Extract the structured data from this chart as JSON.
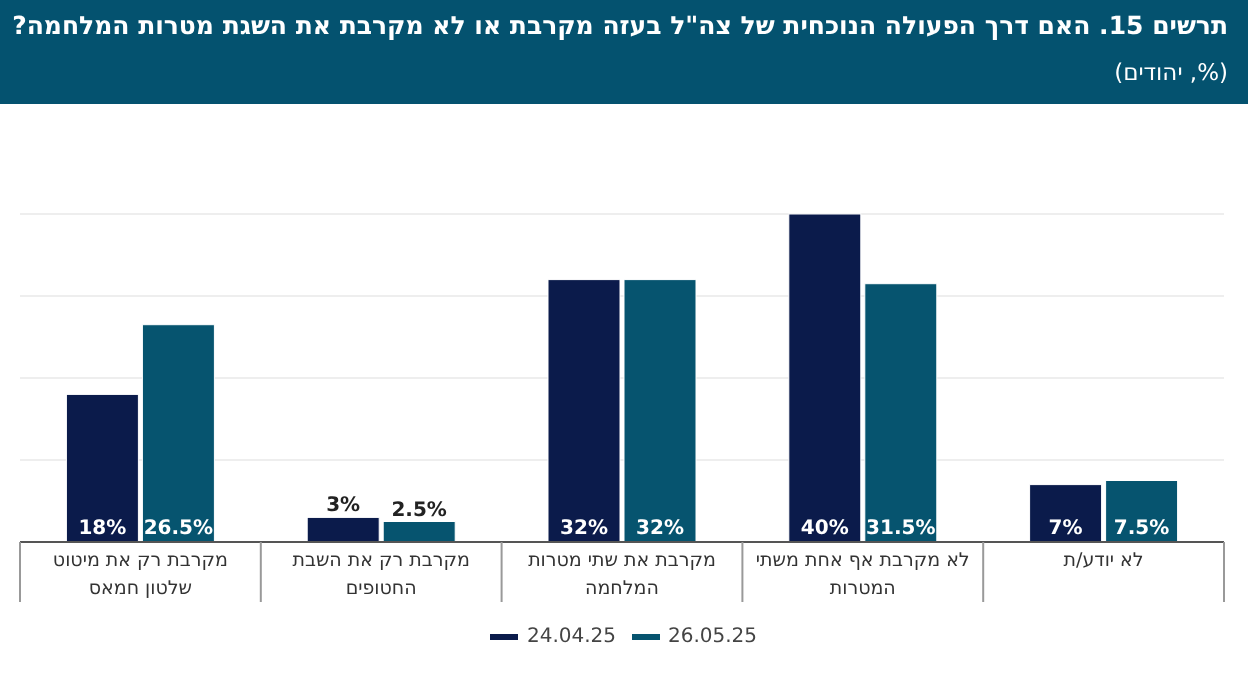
{
  "chart_data": {
    "type": "bar",
    "title": "תרשים 15. האם דרך הפעולה הנוכחית של צה\"ל בעזה מקרבת או לא מקרבת את השגת מטרות המלחמה?",
    "subtitle": "(%, יהודים)",
    "categories": [
      "מקרבת רק את מיטוט שלטון חמאס",
      "מקרבת רק את השבת החטופים",
      "מקרבת את שתי מטרות המלחמה",
      "לא מקרבת אף אחת משתי המטרות",
      "לא יודע/ת"
    ],
    "series": [
      {
        "name": "24.04.25",
        "color": "#0b1b4b",
        "values": [
          18,
          3,
          32,
          40,
          7
        ],
        "value_labels": [
          "18%",
          "3%",
          "32%",
          "40%",
          "7%"
        ]
      },
      {
        "name": "26.05.25",
        "color": "#06546f",
        "values": [
          26.5,
          2.5,
          32,
          31.5,
          7.5
        ],
        "value_labels": [
          "26.5%",
          "2.5%",
          "32%",
          "31.5%",
          "7.5%"
        ]
      }
    ],
    "ylim": [
      0,
      40
    ],
    "yticks": [
      {
        "value": 0,
        "label": null
      },
      {
        "value": 10,
        "label": null
      },
      {
        "value": 20,
        "label": null
      },
      {
        "value": 30,
        "label": null
      },
      {
        "value": 40,
        "label": null
      }
    ],
    "grid": "y",
    "legend": "bottom"
  }
}
